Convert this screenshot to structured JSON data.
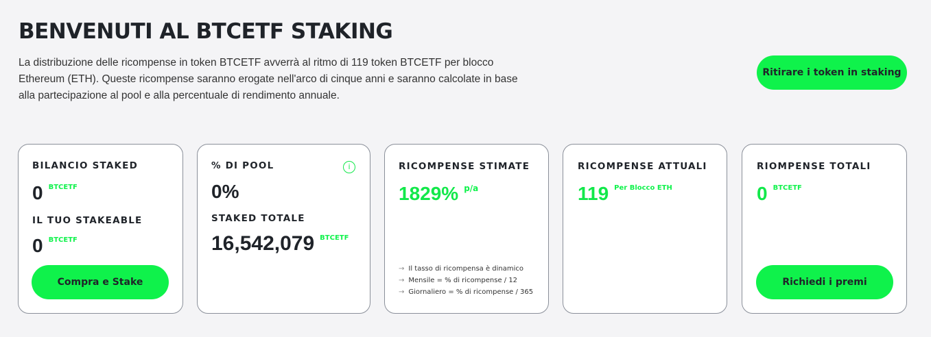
{
  "header": {
    "title": "BENVENUTI AL BTCETF STAKING",
    "description": "La distribuzione delle ricompense in token BTCETF avverrà al ritmo di 119 token BTCETF per blocco Ethereum (ETH). Queste ricompense saranno erogate nell'arco di cinque anni e saranno calcolate in base alla partecipazione al pool e alla percentuale di rendimento annuale.",
    "withdraw_label": "Ritirare i token in staking"
  },
  "cards": {
    "balance": {
      "title": "BILANCIO STAKED",
      "value": "0",
      "unit": "BTCETF",
      "stakeable_title": "IL TUO STAKEABLE",
      "stakeable_value": "0",
      "stakeable_unit": "BTCETF",
      "button": "Compra e Stake"
    },
    "pool": {
      "title": "% DI POOL",
      "value": "0%",
      "info_icon": "info-icon",
      "total_title": "STAKED TOTALE",
      "total_value": "16,542,079",
      "total_unit": "BTCETF"
    },
    "estimated": {
      "title": "RICOMPENSE STIMATE",
      "value": "1829%",
      "unit": "p/a",
      "notes": [
        "Il tasso di ricompensa è dinamico",
        "Mensile = % di ricompense / 12",
        "Giornaliero = % di ricompense / 365"
      ]
    },
    "current": {
      "title": "RICOMPENSE ATTUALI",
      "value": "119",
      "unit": "Per Blocco ETH"
    },
    "total": {
      "title": "RIOMPENSE TOTALI",
      "value": "0",
      "unit": "BTCETF",
      "button": "Richiedi i premi"
    }
  },
  "colors": {
    "accent": "#0ff24b",
    "text": "#1f2329",
    "background": "#f4f4f6"
  }
}
